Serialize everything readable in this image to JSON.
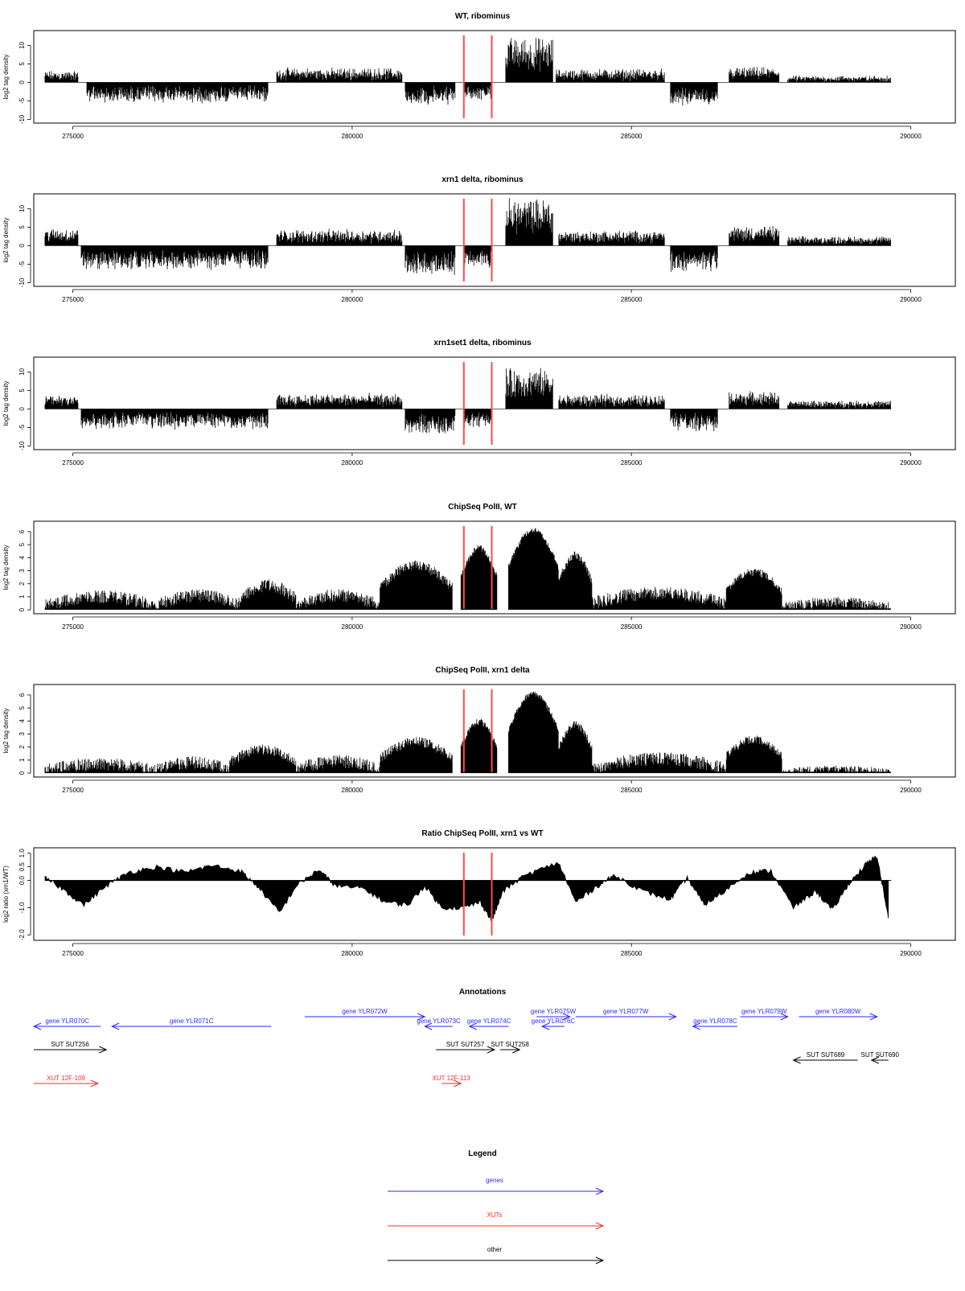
{
  "chart_data": {
    "type": "genome-track",
    "xlim": [
      274300,
      290800
    ],
    "xticks": [
      275000,
      280000,
      285000,
      290000
    ],
    "xtick_labels": [
      "275000",
      "280000",
      "285000",
      "290000"
    ],
    "marker_positions": [
      282000,
      282500
    ],
    "marker_color": "#ff4a4a",
    "panels": [
      {
        "title": "WT, ribominus",
        "ylabel": "log2 tag density",
        "ylim": [
          -11,
          14
        ],
        "yticks": [
          -10,
          -5,
          0,
          5,
          10
        ],
        "ytick_labels": [
          "-10",
          "-5",
          "0",
          "5",
          "10"
        ],
        "kind": "stranded",
        "segments": [
          {
            "start": 274500,
            "end": 275100,
            "amp": 2.2,
            "noise": 1.5
          },
          {
            "start": 275250,
            "end": 278500,
            "amp": -4.0,
            "noise": 2.0
          },
          {
            "start": 278650,
            "end": 280900,
            "amp": 2.8,
            "noise": 1.6
          },
          {
            "start": 280950,
            "end": 281850,
            "amp": -4.5,
            "noise": 2.0
          },
          {
            "start": 282000,
            "end": 282500,
            "amp": -3.5,
            "noise": 1.5
          },
          {
            "start": 282750,
            "end": 283600,
            "amp": 9.5,
            "noise": 2.5
          },
          {
            "start": 283650,
            "end": 285600,
            "amp": 2.6,
            "noise": 1.5
          },
          {
            "start": 285700,
            "end": 286550,
            "amp": -4.5,
            "noise": 2.0
          },
          {
            "start": 286750,
            "end": 287650,
            "amp": 3.0,
            "noise": 1.5
          },
          {
            "start": 287800,
            "end": 289650,
            "amp": 1.2,
            "noise": 1.0
          }
        ]
      },
      {
        "title": "xrn1 delta, ribominus",
        "ylabel": "log2 tag density",
        "ylim": [
          -11,
          14
        ],
        "yticks": [
          -10,
          -5,
          0,
          5,
          10
        ],
        "ytick_labels": [
          "-10",
          "-5",
          "0",
          "5",
          "10"
        ],
        "kind": "stranded",
        "segments": [
          {
            "start": 274500,
            "end": 275100,
            "amp": 3.5,
            "noise": 1.5
          },
          {
            "start": 275150,
            "end": 278500,
            "amp": -4.8,
            "noise": 2.0
          },
          {
            "start": 278650,
            "end": 280900,
            "amp": 3.2,
            "noise": 1.6
          },
          {
            "start": 280950,
            "end": 281850,
            "amp": -6.0,
            "noise": 2.2
          },
          {
            "start": 282000,
            "end": 282500,
            "amp": -4.5,
            "noise": 1.5
          },
          {
            "start": 282750,
            "end": 283600,
            "amp": 10.0,
            "noise": 2.3
          },
          {
            "start": 283700,
            "end": 285600,
            "amp": 3.0,
            "noise": 1.5
          },
          {
            "start": 285700,
            "end": 286550,
            "amp": -5.5,
            "noise": 2.0
          },
          {
            "start": 286750,
            "end": 287650,
            "amp": 4.0,
            "noise": 1.5
          },
          {
            "start": 287800,
            "end": 289650,
            "amp": 1.8,
            "noise": 1.0
          }
        ]
      },
      {
        "title": "xrn1set1 delta, ribominus",
        "ylabel": "log2 tag density",
        "ylim": [
          -11,
          14
        ],
        "yticks": [
          -10,
          -5,
          0,
          5,
          10
        ],
        "ytick_labels": [
          "-10",
          "-5",
          "0",
          "5",
          "10"
        ],
        "kind": "stranded",
        "segments": [
          {
            "start": 274500,
            "end": 275100,
            "amp": 3.0,
            "noise": 1.8
          },
          {
            "start": 275150,
            "end": 278500,
            "amp": -4.0,
            "noise": 2.0
          },
          {
            "start": 278650,
            "end": 280900,
            "amp": 3.0,
            "noise": 1.6
          },
          {
            "start": 280950,
            "end": 281850,
            "amp": -5.0,
            "noise": 2.2
          },
          {
            "start": 282000,
            "end": 282500,
            "amp": -3.8,
            "noise": 1.5
          },
          {
            "start": 282750,
            "end": 283600,
            "amp": 8.5,
            "noise": 2.5
          },
          {
            "start": 283700,
            "end": 285600,
            "amp": 2.8,
            "noise": 1.5
          },
          {
            "start": 285700,
            "end": 286550,
            "amp": -4.5,
            "noise": 2.0
          },
          {
            "start": 286750,
            "end": 287650,
            "amp": 3.5,
            "noise": 1.5
          },
          {
            "start": 287800,
            "end": 289650,
            "amp": 1.6,
            "noise": 1.0
          }
        ]
      },
      {
        "title": "ChipSeq PolII, WT",
        "ylabel": "log2 tag density",
        "ylim": [
          -0.3,
          6.8
        ],
        "yticks": [
          0,
          1,
          2,
          3,
          4,
          5,
          6
        ],
        "ytick_labels": [
          "0",
          "1",
          "2",
          "3",
          "4",
          "5",
          "6"
        ],
        "kind": "coverage",
        "segments": [
          {
            "start": 274500,
            "end": 276500,
            "amp": 1.5,
            "noise": 1.0
          },
          {
            "start": 276500,
            "end": 278000,
            "amp": 1.6,
            "noise": 1.0
          },
          {
            "start": 278000,
            "end": 279000,
            "amp": 2.4,
            "noise": 1.0
          },
          {
            "start": 279000,
            "end": 280500,
            "amp": 1.6,
            "noise": 1.0
          },
          {
            "start": 280500,
            "end": 281800,
            "amp": 3.8,
            "noise": 0.8
          },
          {
            "start": 281950,
            "end": 282600,
            "amp": 5.0,
            "noise": 0.5
          },
          {
            "start": 282800,
            "end": 283700,
            "amp": 6.3,
            "noise": 0.4
          },
          {
            "start": 283700,
            "end": 284300,
            "amp": 4.5,
            "noise": 0.6
          },
          {
            "start": 284300,
            "end": 286700,
            "amp": 1.8,
            "noise": 1.0
          },
          {
            "start": 286700,
            "end": 287700,
            "amp": 3.2,
            "noise": 0.6
          },
          {
            "start": 287700,
            "end": 289650,
            "amp": 1.0,
            "noise": 0.8
          }
        ]
      },
      {
        "title": "ChipSeq PolII, xrn1 delta",
        "ylabel": "log2 tag density",
        "ylim": [
          -0.3,
          6.8
        ],
        "yticks": [
          0,
          1,
          2,
          3,
          4,
          5,
          6
        ],
        "ytick_labels": [
          "0",
          "1",
          "2",
          "3",
          "4",
          "5",
          "6"
        ],
        "kind": "coverage",
        "segments": [
          {
            "start": 274500,
            "end": 276500,
            "amp": 1.2,
            "noise": 1.0
          },
          {
            "start": 276500,
            "end": 277800,
            "amp": 1.3,
            "noise": 1.0
          },
          {
            "start": 277800,
            "end": 279000,
            "amp": 2.2,
            "noise": 0.8
          },
          {
            "start": 279000,
            "end": 280500,
            "amp": 1.4,
            "noise": 1.0
          },
          {
            "start": 280500,
            "end": 281800,
            "amp": 2.8,
            "noise": 0.8
          },
          {
            "start": 281950,
            "end": 282600,
            "amp": 4.2,
            "noise": 0.5
          },
          {
            "start": 282800,
            "end": 283700,
            "amp": 6.3,
            "noise": 0.4
          },
          {
            "start": 283700,
            "end": 284300,
            "amp": 4.0,
            "noise": 0.6
          },
          {
            "start": 284300,
            "end": 286700,
            "amp": 1.6,
            "noise": 1.0
          },
          {
            "start": 286700,
            "end": 287700,
            "amp": 2.9,
            "noise": 0.6
          },
          {
            "start": 287700,
            "end": 289650,
            "amp": 0.6,
            "noise": 0.6
          }
        ]
      },
      {
        "title": "Ratio ChipSeq PolII, xrn1 vs WT",
        "ylabel": "log2 ratio (xrn1/WT)",
        "ylim": [
          -2.2,
          1.2
        ],
        "yticks": [
          -2.0,
          -1.0,
          0.0,
          0.5,
          1.0
        ],
        "ytick_labels": [
          "-2.0",
          "-1.0",
          "0.0",
          "0.5",
          "1.0"
        ],
        "kind": "ratio",
        "curve": [
          [
            274500,
            0.1
          ],
          [
            274800,
            -0.3
          ],
          [
            275200,
            -0.9
          ],
          [
            275600,
            -0.2
          ],
          [
            276000,
            0.3
          ],
          [
            276500,
            0.5
          ],
          [
            277000,
            0.3
          ],
          [
            277500,
            0.55
          ],
          [
            278000,
            0.35
          ],
          [
            278300,
            -0.2
          ],
          [
            278700,
            -1.2
          ],
          [
            279000,
            -0.2
          ],
          [
            279400,
            0.4
          ],
          [
            279700,
            -0.2
          ],
          [
            280200,
            -0.3
          ],
          [
            280600,
            -0.8
          ],
          [
            281000,
            -0.9
          ],
          [
            281300,
            -0.2
          ],
          [
            281600,
            -1.0
          ],
          [
            282000,
            -1.0
          ],
          [
            282300,
            -0.8
          ],
          [
            282500,
            -1.5
          ],
          [
            282700,
            -0.4
          ],
          [
            283100,
            0.2
          ],
          [
            283700,
            0.65
          ],
          [
            284000,
            -0.8
          ],
          [
            284400,
            -0.2
          ],
          [
            284700,
            0.2
          ],
          [
            285200,
            -0.4
          ],
          [
            285700,
            -0.7
          ],
          [
            286000,
            0.1
          ],
          [
            286300,
            -0.9
          ],
          [
            286600,
            -0.5
          ],
          [
            287100,
            0.3
          ],
          [
            287500,
            0.35
          ],
          [
            287900,
            -1.0
          ],
          [
            288300,
            -0.4
          ],
          [
            288600,
            -1.1
          ],
          [
            288900,
            -0.1
          ],
          [
            289200,
            0.6
          ],
          [
            289400,
            0.9
          ],
          [
            289600,
            -1.4
          ]
        ]
      }
    ],
    "annotations": {
      "title": "Annotations",
      "features": [
        {
          "label": "gene YLR070C",
          "start": 274300,
          "end": 275500,
          "strand": "-",
          "type": "genes",
          "row": 0
        },
        {
          "label": "gene YLR071C",
          "start": 275700,
          "end": 278550,
          "strand": "-",
          "type": "genes",
          "row": 0
        },
        {
          "label": "gene YLR072W",
          "start": 279150,
          "end": 281300,
          "strand": "+",
          "type": "genes",
          "row": -1
        },
        {
          "label": "gene YLR073C",
          "start": 281300,
          "end": 281800,
          "strand": "-",
          "type": "genes",
          "row": 0
        },
        {
          "label": "gene YLR074C",
          "start": 282100,
          "end": 282800,
          "strand": "-",
          "type": "genes",
          "row": 0
        },
        {
          "label": "gene YLR075W",
          "start": 283300,
          "end": 283900,
          "strand": "+",
          "type": "genes",
          "row": -1
        },
        {
          "label": "gene YLR076C",
          "start": 283400,
          "end": 283800,
          "strand": "-",
          "type": "genes",
          "row": 0
        },
        {
          "label": "gene YLR077W",
          "start": 284000,
          "end": 285800,
          "strand": "+",
          "type": "genes",
          "row": -1
        },
        {
          "label": "gene YLR078C",
          "start": 286100,
          "end": 286900,
          "strand": "-",
          "type": "genes",
          "row": 0
        },
        {
          "label": "gene YLR079W",
          "start": 286950,
          "end": 287800,
          "strand": "+",
          "type": "genes",
          "row": -1
        },
        {
          "label": "gene YLR080W",
          "start": 288000,
          "end": 289400,
          "strand": "+",
          "type": "genes",
          "row": -1
        },
        {
          "label": "SUT SUT256",
          "start": 274300,
          "end": 275600,
          "strand": "+",
          "type": "other",
          "row": 1
        },
        {
          "label": "SUT SUT257",
          "start": 281500,
          "end": 282550,
          "strand": "+",
          "type": "other",
          "row": 1
        },
        {
          "label": "SUT SUT258",
          "start": 282650,
          "end": 283000,
          "strand": "+",
          "type": "other",
          "row": 1
        },
        {
          "label": "SUT SUT689",
          "start": 287900,
          "end": 289050,
          "strand": "-",
          "type": "other",
          "row": 2
        },
        {
          "label": "SUT SUT690",
          "start": 289300,
          "end": 289600,
          "strand": "-",
          "type": "other",
          "row": 2
        },
        {
          "label": "XUT 12F-109",
          "start": 274300,
          "end": 275450,
          "strand": "+",
          "type": "XUTs",
          "row": 3
        },
        {
          "label": "XUT 12F-113",
          "start": 281600,
          "end": 281950,
          "strand": "+",
          "type": "XUTs",
          "row": 3
        }
      ]
    },
    "legend": {
      "title": "Legend",
      "items": [
        {
          "label": "genes",
          "color": "#2a2aff"
        },
        {
          "label": "XUTs",
          "color": "#ff2a2a"
        },
        {
          "label": "other",
          "color": "#000000"
        }
      ]
    }
  }
}
